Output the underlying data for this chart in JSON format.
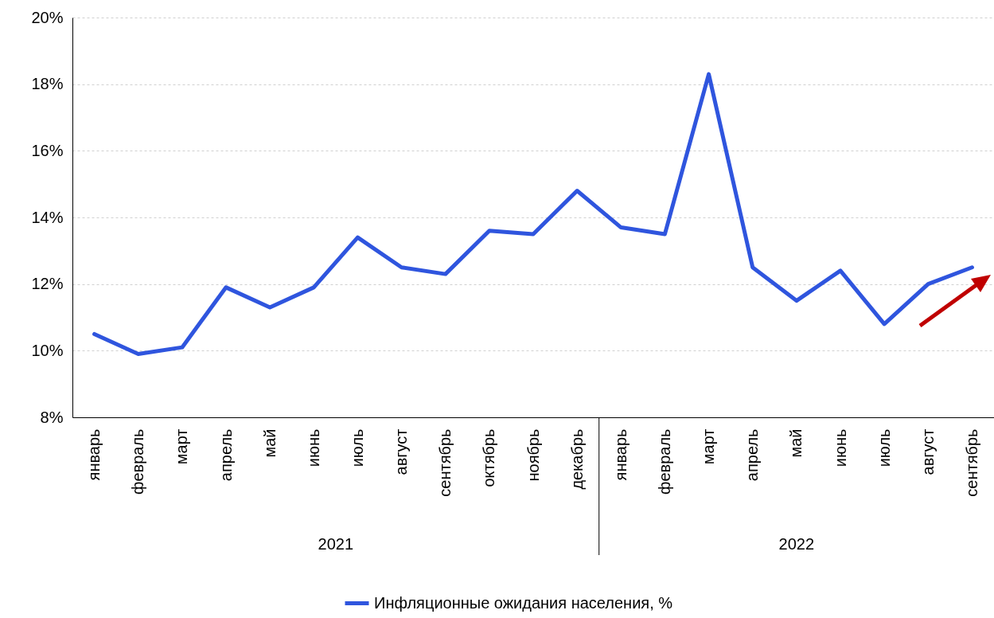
{
  "chart_data": {
    "type": "line",
    "categories": [
      "январь",
      "февраль",
      "март",
      "апрель",
      "май",
      "июнь",
      "июль",
      "август",
      "сентябрь",
      "октябрь",
      "ноябрь",
      "декабрь",
      "январь",
      "февраль",
      "март",
      "апрель",
      "май",
      "июнь",
      "июль",
      "август",
      "сентябрь"
    ],
    "series": [
      {
        "name": "Инфляционные ожидания населения, %",
        "color": "#2f55de",
        "values": [
          10.5,
          9.9,
          10.1,
          11.9,
          11.3,
          11.9,
          13.4,
          12.5,
          12.3,
          13.6,
          13.5,
          14.8,
          13.7,
          13.5,
          18.3,
          12.5,
          11.5,
          12.4,
          10.8,
          12.0,
          12.5
        ]
      }
    ],
    "annotations": [
      "2021",
      "2022"
    ],
    "ylim": [
      8,
      20
    ],
    "yticks": [
      {
        "value": 8,
        "label": "8%"
      },
      {
        "value": 10,
        "label": "10%"
      },
      {
        "value": 12,
        "label": "12%"
      },
      {
        "value": 14,
        "label": "14%"
      },
      {
        "value": 16,
        "label": "16%"
      },
      {
        "value": 18,
        "label": "18%"
      },
      {
        "value": 20,
        "label": "20%"
      }
    ],
    "grid": "y",
    "legend": "bottom",
    "marker": "none",
    "line_style": "solid"
  }
}
